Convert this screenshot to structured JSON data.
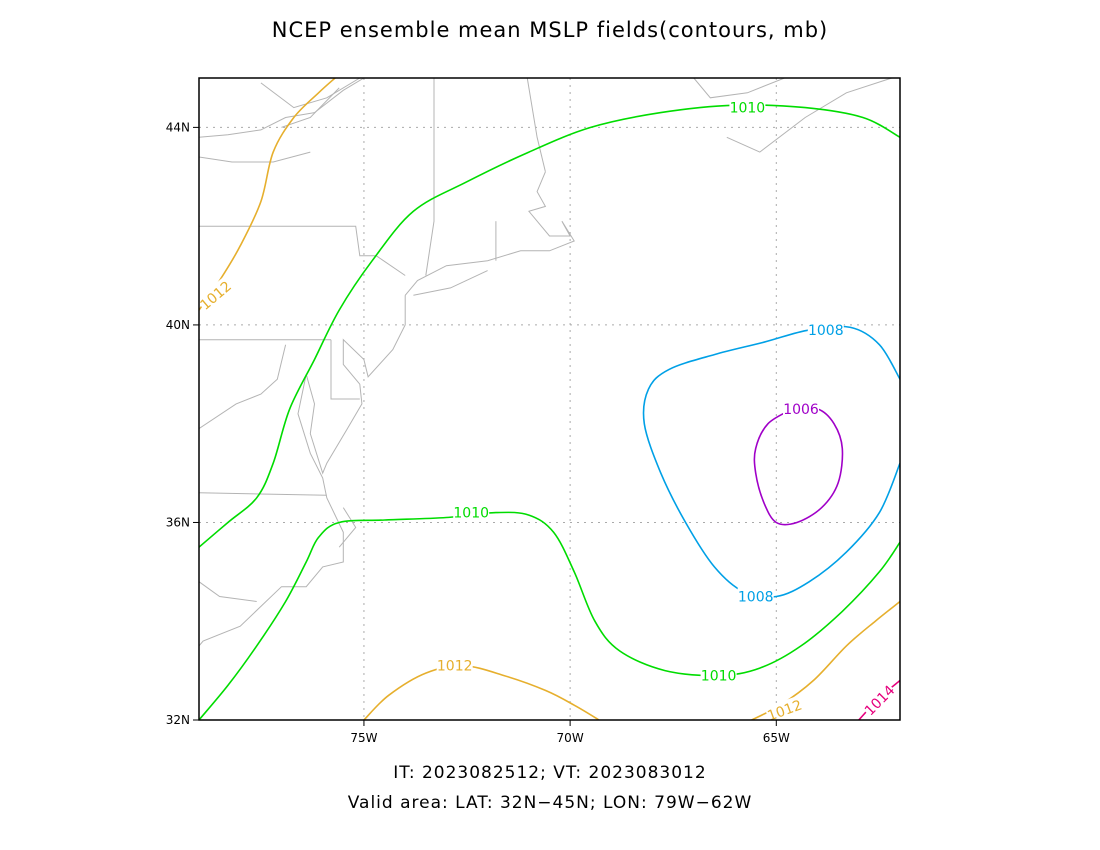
{
  "title": "NCEP ensemble mean MSLP fields(contours, mb)",
  "caption": {
    "times": "IT: 2023082512; VT: 2023083012",
    "area": "Valid area: LAT: 32N−45N; LON: 79W−62W"
  },
  "map": {
    "lon_range": [
      -79,
      -62
    ],
    "lat_range": [
      32,
      45
    ],
    "lon_ticks": [
      {
        "value": -75,
        "label": "75W"
      },
      {
        "value": -70,
        "label": "70W"
      },
      {
        "value": -65,
        "label": "65W"
      }
    ],
    "lat_ticks": [
      {
        "value": 32,
        "label": "32N"
      },
      {
        "value": 36,
        "label": "36N"
      },
      {
        "value": 40,
        "label": "40N"
      },
      {
        "value": 44,
        "label": "44N"
      }
    ],
    "gridlines": "dotted",
    "colors": {
      "1006": "#a000c8",
      "1008": "#00a0e6",
      "1010": "#00dc00",
      "1012": "#e6af2d",
      "1014": "#e6007d",
      "coast": "#b4b4b4"
    }
  },
  "contour_labels": [
    {
      "text": "1010",
      "color_key": "1010",
      "lon": -65.7,
      "lat": 44.4,
      "rot": 0
    },
    {
      "text": "1010",
      "color_key": "1010",
      "lon": -72.4,
      "lat": 36.2,
      "rot": 0
    },
    {
      "text": "1010",
      "color_key": "1010",
      "lon": -66.4,
      "lat": 32.9,
      "rot": 0
    },
    {
      "text": "1008",
      "color_key": "1008",
      "lon": -63.8,
      "lat": 39.9,
      "rot": 0
    },
    {
      "text": "1008",
      "color_key": "1008",
      "lon": -65.5,
      "lat": 34.5,
      "rot": 0
    },
    {
      "text": "1006",
      "color_key": "1006",
      "lon": -64.4,
      "lat": 38.3,
      "rot": 0
    },
    {
      "text": "1012",
      "color_key": "1012",
      "lon": -72.8,
      "lat": 33.1,
      "rot": 0
    },
    {
      "text": "1012",
      "color_key": "1012",
      "lon": -78.6,
      "lat": 40.6,
      "rot": -40
    },
    {
      "text": "1012",
      "color_key": "1012",
      "lon": -64.8,
      "lat": 32.2,
      "rot": -20
    },
    {
      "text": "1014",
      "color_key": "1014",
      "lon": -62.5,
      "lat": 32.4,
      "rot": -45
    }
  ],
  "contours": [
    {
      "level": "1012",
      "color_key": "1012",
      "points": [
        [
          -79,
          40.3
        ],
        [
          -78.5,
          40.9
        ],
        [
          -78,
          41.6
        ],
        [
          -77.5,
          42.5
        ],
        [
          -77.2,
          43.5
        ],
        [
          -76.7,
          44.2
        ],
        [
          -76.1,
          44.7
        ],
        [
          -75.7,
          45
        ]
      ]
    },
    {
      "level": "1010",
      "color_key": "1010",
      "points": [
        [
          -79,
          35.5
        ],
        [
          -78.3,
          36
        ],
        [
          -77.6,
          36.5
        ],
        [
          -77.2,
          37.2
        ],
        [
          -76.8,
          38.3
        ],
        [
          -76.2,
          39.3
        ],
        [
          -75.6,
          40.3
        ],
        [
          -74.8,
          41.3
        ],
        [
          -73.8,
          42.3
        ],
        [
          -72.5,
          42.9
        ],
        [
          -71,
          43.5
        ],
        [
          -69.5,
          44
        ],
        [
          -67.8,
          44.3
        ],
        [
          -66,
          44.45
        ],
        [
          -64.3,
          44.4
        ],
        [
          -62.9,
          44.2
        ],
        [
          -62,
          43.8
        ]
      ]
    },
    {
      "level": "1010",
      "color_key": "1010",
      "points": [
        [
          -79,
          32
        ],
        [
          -78.3,
          32.7
        ],
        [
          -77.6,
          33.5
        ],
        [
          -76.9,
          34.4
        ],
        [
          -76.4,
          35.2
        ],
        [
          -76.1,
          35.7
        ],
        [
          -75.6,
          36
        ],
        [
          -74.5,
          36.05
        ],
        [
          -73,
          36.1
        ],
        [
          -71.8,
          36.2
        ],
        [
          -71,
          36.15
        ],
        [
          -70.4,
          35.8
        ],
        [
          -69.9,
          35
        ],
        [
          -69.4,
          34
        ],
        [
          -68.8,
          33.4
        ],
        [
          -67.7,
          33
        ],
        [
          -66.4,
          32.9
        ],
        [
          -65.4,
          33.05
        ],
        [
          -64.4,
          33.5
        ],
        [
          -63.4,
          34.2
        ],
        [
          -62.5,
          35
        ],
        [
          -62,
          35.6
        ]
      ]
    },
    {
      "level": "1008",
      "color_key": "1008",
      "points": [
        [
          -62,
          38.9
        ],
        [
          -62.5,
          39.6
        ],
        [
          -63.2,
          39.95
        ],
        [
          -64.2,
          39.9
        ],
        [
          -65.3,
          39.65
        ],
        [
          -66.5,
          39.4
        ],
        [
          -67.6,
          39.1
        ],
        [
          -68.1,
          38.7
        ],
        [
          -68.2,
          38
        ],
        [
          -67.8,
          37
        ],
        [
          -67.2,
          36
        ],
        [
          -66.5,
          35.1
        ],
        [
          -65.8,
          34.6
        ],
        [
          -65,
          34.5
        ],
        [
          -64.2,
          34.8
        ],
        [
          -63.3,
          35.4
        ],
        [
          -62.5,
          36.2
        ],
        [
          -62,
          37.2
        ]
      ]
    },
    {
      "level": "1006",
      "color_key": "1006",
      "points": [
        [
          -64.6,
          38.3
        ],
        [
          -64,
          38.3
        ],
        [
          -63.6,
          38
        ],
        [
          -63.4,
          37.5
        ],
        [
          -63.5,
          36.8
        ],
        [
          -63.9,
          36.3
        ],
        [
          -64.5,
          36
        ],
        [
          -65,
          36
        ],
        [
          -65.3,
          36.4
        ],
        [
          -65.5,
          37
        ],
        [
          -65.5,
          37.5
        ],
        [
          -65.2,
          38
        ],
        [
          -64.6,
          38.3
        ]
      ]
    },
    {
      "level": "1012",
      "color_key": "1012",
      "points": [
        [
          -75,
          32
        ],
        [
          -74.4,
          32.5
        ],
        [
          -73.5,
          32.95
        ],
        [
          -72.6,
          33.1
        ],
        [
          -71.6,
          32.9
        ],
        [
          -70.6,
          32.6
        ],
        [
          -69.9,
          32.3
        ],
        [
          -69.3,
          32
        ]
      ]
    },
    {
      "level": "1012",
      "color_key": "1012",
      "points": [
        [
          -65.6,
          32
        ],
        [
          -64.9,
          32.3
        ],
        [
          -64.1,
          32.8
        ],
        [
          -63.3,
          33.5
        ],
        [
          -62.6,
          34
        ],
        [
          -62,
          34.4
        ]
      ]
    },
    {
      "level": "1014",
      "color_key": "1014",
      "points": [
        [
          -63,
          32
        ],
        [
          -62.5,
          32.45
        ],
        [
          -62,
          32.8
        ]
      ]
    }
  ],
  "coastlines": [
    [
      [
        -79,
        43.8
      ],
      [
        -78.3,
        43.85
      ],
      [
        -77.5,
        43.95
      ],
      [
        -76.9,
        44.2
      ],
      [
        -76.2,
        44.3
      ]
    ],
    [
      [
        -79,
        43.4
      ],
      [
        -78.2,
        43.3
      ],
      [
        -77.2,
        43.3
      ],
      [
        -76.3,
        43.5
      ]
    ],
    [
      [
        -77.5,
        44.9
      ],
      [
        -76.7,
        44.4
      ],
      [
        -75.9,
        44.6
      ],
      [
        -75.1,
        45
      ]
    ],
    [
      [
        -76.2,
        44.3
      ],
      [
        -75.5,
        44.75
      ],
      [
        -75,
        45
      ]
    ],
    [
      [
        -75.6,
        45
      ],
      [
        -74.8,
        45
      ],
      [
        -73.4,
        45
      ],
      [
        -71.5,
        45
      ],
      [
        -71.1,
        45.3
      ]
    ],
    [
      [
        -71.1,
        45.3
      ],
      [
        -70.8,
        43.8
      ],
      [
        -70.6,
        43.1
      ]
    ],
    [
      [
        -73.3,
        45
      ],
      [
        -73.3,
        42.1
      ],
      [
        -73.5,
        41
      ]
    ],
    [
      [
        -71.8,
        42.1
      ],
      [
        -71.8,
        41.3
      ]
    ],
    [
      [
        -79,
        42
      ],
      [
        -75.2,
        42
      ],
      [
        -75.1,
        41.4
      ],
      [
        -74.7,
        41.4
      ],
      [
        -74,
        41
      ]
    ],
    [
      [
        -77,
        44
      ],
      [
        -76.3,
        44.2
      ],
      [
        -75.6,
        44.8
      ]
    ],
    [
      [
        -70.6,
        43.1
      ],
      [
        -70.8,
        42.7
      ],
      [
        -70.6,
        42.4
      ],
      [
        -71,
        42.3
      ],
      [
        -70.5,
        41.8
      ],
      [
        -70,
        41.8
      ],
      [
        -70.2,
        42.1
      ],
      [
        -69.9,
        41.7
      ],
      [
        -70.5,
        41.5
      ],
      [
        -71.2,
        41.5
      ],
      [
        -72,
        41.3
      ],
      [
        -73,
        41.2
      ],
      [
        -73.7,
        40.9
      ],
      [
        -74,
        40.6
      ]
    ],
    [
      [
        -72,
        41.1
      ],
      [
        -72.9,
        40.75
      ],
      [
        -73.8,
        40.6
      ]
    ],
    [
      [
        -74,
        40.6
      ],
      [
        -74,
        40
      ],
      [
        -74.3,
        39.5
      ],
      [
        -74.9,
        38.95
      ],
      [
        -75,
        39.3
      ],
      [
        -75.5,
        39.7
      ],
      [
        -75.5,
        39.2
      ],
      [
        -75.1,
        38.8
      ],
      [
        -75.05,
        38.4
      ],
      [
        -75.4,
        37.9
      ],
      [
        -75.9,
        37.2
      ],
      [
        -76,
        37
      ],
      [
        -76.3,
        37.8
      ],
      [
        -76.2,
        38.4
      ],
      [
        -76.4,
        39
      ],
      [
        -76.6,
        38.2
      ],
      [
        -76.3,
        37.4
      ],
      [
        -76,
        36.9
      ],
      [
        -75.9,
        36.5
      ],
      [
        -75.5,
        35.8
      ],
      [
        -75.5,
        35.2
      ],
      [
        -76,
        35.1
      ],
      [
        -76.4,
        34.7
      ],
      [
        -77,
        34.7
      ],
      [
        -77.5,
        34.3
      ],
      [
        -78,
        33.9
      ],
      [
        -78.9,
        33.6
      ],
      [
        -79,
        33.5
      ]
    ],
    [
      [
        -79,
        37.9
      ],
      [
        -78.1,
        38.4
      ],
      [
        -77.5,
        38.6
      ],
      [
        -77.1,
        38.9
      ],
      [
        -76.9,
        39.6
      ]
    ],
    [
      [
        -79,
        39.7
      ],
      [
        -75.8,
        39.7
      ]
    ],
    [
      [
        -75.8,
        39.7
      ],
      [
        -75.8,
        38.5
      ],
      [
        -75.1,
        38.5
      ]
    ],
    [
      [
        -79,
        36.6
      ],
      [
        -75.9,
        36.55
      ]
    ],
    [
      [
        -79,
        34.8
      ],
      [
        -78.5,
        34.5
      ],
      [
        -77.6,
        34.4
      ]
    ],
    [
      [
        -75.6,
        35.5
      ],
      [
        -75.2,
        35.9
      ],
      [
        -75.5,
        36.3
      ]
    ],
    [
      [
        -67,
        45
      ],
      [
        -66.6,
        44.6
      ],
      [
        -65.7,
        44.7
      ],
      [
        -64.8,
        45
      ],
      [
        -64.3,
        45.1
      ]
    ],
    [
      [
        -66.2,
        43.8
      ],
      [
        -65.4,
        43.5
      ],
      [
        -64.3,
        44.2
      ],
      [
        -63.3,
        44.7
      ],
      [
        -62.2,
        45
      ],
      [
        -62,
        45
      ]
    ],
    [
      [
        -73.5,
        45
      ],
      [
        -72.3,
        45
      ],
      [
        -71.5,
        45.2
      ]
    ]
  ]
}
